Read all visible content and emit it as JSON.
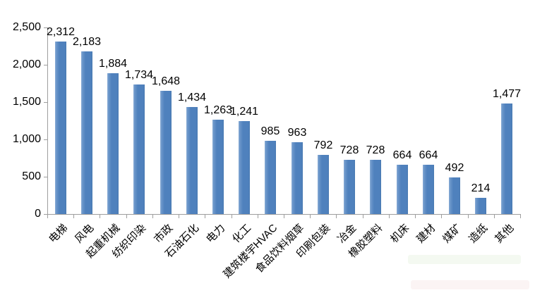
{
  "chart_data": {
    "type": "bar",
    "title": "",
    "xlabel": "",
    "ylabel": "",
    "grid": "off",
    "legend": "none",
    "categories": [
      "电梯",
      "风电",
      "起重机械",
      "纺织印染",
      "市政",
      "石油石化",
      "电力",
      "化工",
      "建筑楼宇HVAC",
      "食品饮料烟草",
      "印刷包装",
      "冶金",
      "橡胶塑料",
      "机床",
      "建材",
      "煤矿",
      "造纸",
      "其他"
    ],
    "values": [
      2312,
      2183,
      1884,
      1734,
      1648,
      1434,
      1263,
      1241,
      985,
      963,
      792,
      728,
      728,
      664,
      664,
      492,
      214,
      1477
    ],
    "value_labels": [
      "2,312",
      "2,183",
      "1,884",
      "1,734",
      "1,648",
      "1,434",
      "1,263",
      "1,241",
      "985",
      "963",
      "792",
      "728",
      "728",
      "664",
      "664",
      "492",
      "214",
      "1,477"
    ],
    "y_axis": {
      "min": 0,
      "max": 2500,
      "tick_labels": [
        "2,500",
        "2,000",
        "1,500",
        "1,000",
        "500",
        "0"
      ]
    },
    "colors": {
      "bar": "#4f81bd",
      "axis": "#9e9e9e",
      "text": "#000000",
      "background": "#ffffff"
    }
  }
}
